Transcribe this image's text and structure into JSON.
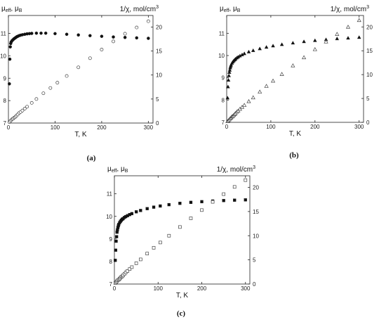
{
  "chart_data": [
    {
      "panel": "(a)",
      "type": "scatter",
      "xlabel": "T, K",
      "ylabel_left": "μeff, μB",
      "ylabel_right": "1/χ, mol/cm3",
      "xlim": [
        0,
        310
      ],
      "ylim_left": [
        7,
        11.8
      ],
      "ylim_right": [
        0,
        22.4
      ],
      "xticks": [
        0,
        100,
        200,
        300
      ],
      "yticks_left": [
        7,
        8,
        9,
        10,
        11
      ],
      "yticks_right": [
        0,
        5,
        10,
        15,
        20
      ],
      "marker": "circle",
      "series": [
        {
          "axis": "left",
          "filled": true,
          "x": [
            2,
            3,
            4,
            5,
            6,
            8,
            10,
            12,
            14,
            16,
            18,
            20,
            23,
            26,
            30,
            35,
            40,
            45,
            50,
            60,
            70,
            80,
            100,
            125,
            150,
            175,
            200,
            225,
            250,
            275,
            300
          ],
          "y": [
            8.75,
            9.85,
            10.4,
            10.55,
            10.62,
            10.68,
            10.72,
            10.76,
            10.79,
            10.82,
            10.85,
            10.87,
            10.9,
            10.92,
            10.94,
            10.96,
            10.98,
            10.99,
            11.0,
            11.01,
            11.01,
            11.01,
            10.99,
            10.96,
            10.93,
            10.9,
            10.87,
            10.84,
            10.82,
            10.8,
            10.78
          ]
        },
        {
          "axis": "right",
          "filled": false,
          "x": [
            2,
            4,
            6,
            8,
            10,
            12,
            14,
            16,
            18,
            20,
            23,
            26,
            30,
            35,
            40,
            50,
            60,
            75,
            90,
            105,
            125,
            150,
            175,
            200,
            225,
            250,
            275,
            300
          ],
          "y": [
            0.2,
            0.4,
            0.6,
            0.8,
            0.9,
            1.1,
            1.2,
            1.4,
            1.6,
            1.8,
            2.1,
            2.3,
            2.6,
            3.0,
            3.4,
            4.2,
            5.0,
            6.2,
            7.3,
            8.4,
            9.8,
            11.6,
            13.5,
            15.3,
            17.0,
            18.6,
            19.9,
            21.2
          ]
        }
      ]
    },
    {
      "panel": "(b)",
      "type": "scatter",
      "xlabel": "T, K",
      "ylabel_left": "μeff, μB",
      "ylabel_right": "1/χ, mol/cm3",
      "xlim": [
        0,
        310
      ],
      "ylim_left": [
        7,
        11.8
      ],
      "ylim_right": [
        0,
        22.4
      ],
      "xticks": [
        0,
        100,
        200,
        300
      ],
      "yticks_left": [
        7,
        8,
        9,
        10,
        11
      ],
      "yticks_right": [
        0,
        5,
        10,
        15,
        20
      ],
      "marker": "triangle",
      "series": [
        {
          "axis": "left",
          "filled": true,
          "x": [
            2,
            3,
            4,
            5,
            6,
            7,
            8,
            9,
            10,
            12,
            14,
            16,
            18,
            20,
            23,
            26,
            30,
            35,
            40,
            50,
            60,
            75,
            90,
            105,
            125,
            150,
            175,
            200,
            225,
            250,
            275,
            300
          ],
          "y": [
            8.1,
            8.6,
            8.9,
            9.1,
            9.25,
            9.35,
            9.45,
            9.52,
            9.58,
            9.66,
            9.72,
            9.77,
            9.81,
            9.85,
            9.9,
            9.94,
            9.99,
            10.04,
            10.09,
            10.17,
            10.23,
            10.31,
            10.38,
            10.44,
            10.5,
            10.57,
            10.63,
            10.68,
            10.72,
            10.76,
            10.79,
            10.82
          ]
        },
        {
          "axis": "right",
          "filled": false,
          "x": [
            2,
            4,
            6,
            8,
            10,
            12,
            14,
            16,
            18,
            20,
            23,
            26,
            30,
            35,
            40,
            50,
            60,
            75,
            90,
            105,
            125,
            150,
            175,
            200,
            225,
            250,
            275,
            300
          ],
          "y": [
            0.2,
            0.4,
            0.6,
            0.8,
            1.0,
            1.2,
            1.3,
            1.5,
            1.7,
            1.9,
            2.2,
            2.4,
            2.8,
            3.2,
            3.6,
            4.4,
            5.2,
            6.4,
            7.6,
            8.7,
            10.1,
            11.9,
            13.6,
            15.3,
            16.9,
            18.5,
            20.0,
            21.4
          ]
        }
      ]
    },
    {
      "panel": "(c)",
      "type": "scatter",
      "xlabel": "T, K",
      "ylabel_left": "μeff, μB",
      "ylabel_right": "1/χ, mol/cm3",
      "xlim": [
        0,
        310
      ],
      "ylim_left": [
        7,
        11.8
      ],
      "ylim_right": [
        0,
        22.4
      ],
      "xticks": [
        0,
        100,
        200,
        300
      ],
      "yticks_left": [
        7,
        8,
        9,
        10,
        11
      ],
      "yticks_right": [
        0,
        5,
        10,
        15,
        20
      ],
      "marker": "square",
      "series": [
        {
          "axis": "left",
          "filled": true,
          "x": [
            2,
            3,
            4,
            5,
            6,
            7,
            8,
            9,
            10,
            12,
            14,
            16,
            18,
            20,
            23,
            26,
            30,
            35,
            40,
            50,
            60,
            75,
            90,
            105,
            125,
            150,
            175,
            200,
            225,
            250,
            275,
            300
          ],
          "y": [
            8.05,
            8.5,
            8.9,
            9.1,
            9.3,
            9.4,
            9.5,
            9.58,
            9.64,
            9.72,
            9.78,
            9.83,
            9.87,
            9.9,
            9.95,
            9.99,
            10.03,
            10.08,
            10.12,
            10.2,
            10.26,
            10.34,
            10.41,
            10.46,
            10.52,
            10.58,
            10.62,
            10.65,
            10.68,
            10.7,
            10.72,
            10.73
          ]
        },
        {
          "axis": "right",
          "filled": false,
          "x": [
            2,
            4,
            6,
            8,
            10,
            12,
            14,
            16,
            18,
            20,
            23,
            26,
            30,
            35,
            40,
            50,
            60,
            75,
            90,
            105,
            125,
            150,
            175,
            200,
            225,
            250,
            275,
            300
          ],
          "y": [
            0.2,
            0.4,
            0.6,
            0.8,
            0.9,
            1.1,
            1.3,
            1.5,
            1.6,
            1.8,
            2.1,
            2.4,
            2.7,
            3.1,
            3.5,
            4.3,
            5.1,
            6.3,
            7.5,
            8.6,
            10.0,
            11.8,
            13.6,
            15.3,
            17.0,
            18.6,
            20.1,
            21.5
          ]
        }
      ]
    }
  ]
}
